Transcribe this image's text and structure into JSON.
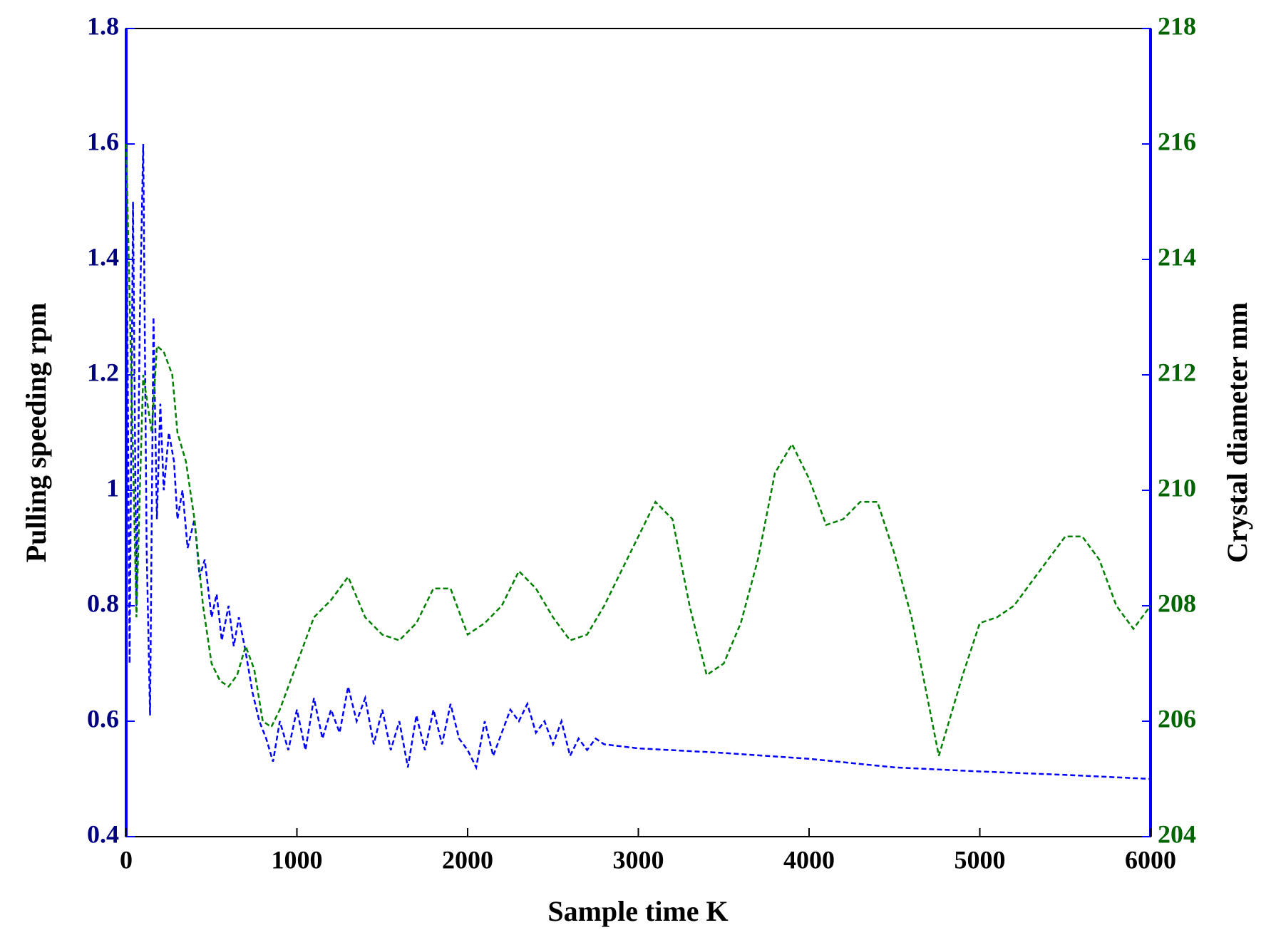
{
  "chart_data": {
    "type": "line",
    "xlabel": "Sample time K",
    "ylabel": "Pulling speeding  rpm",
    "y2label": "Crystal diameter  mm",
    "xlim": [
      0,
      6000
    ],
    "xticks": [
      0,
      1000,
      2000,
      3000,
      4000,
      5000,
      6000
    ],
    "ylim": [
      0.4,
      1.8
    ],
    "yticks": [
      0.4,
      0.6,
      0.8,
      1,
      1.2,
      1.4,
      1.6,
      1.8
    ],
    "y2lim": [
      204,
      218
    ],
    "y2ticks": [
      204,
      206,
      208,
      210,
      212,
      214,
      216,
      218
    ],
    "linestyle": "dashed",
    "series": [
      {
        "color": "#0000ff",
        "axis": "y",
        "x": [
          0,
          20,
          40,
          60,
          80,
          100,
          120,
          140,
          160,
          180,
          200,
          220,
          250,
          280,
          300,
          330,
          360,
          400,
          430,
          460,
          500,
          530,
          560,
          600,
          630,
          660,
          700,
          740,
          780,
          820,
          860,
          900,
          950,
          1000,
          1050,
          1100,
          1150,
          1200,
          1250,
          1300,
          1350,
          1400,
          1450,
          1500,
          1550,
          1600,
          1650,
          1700,
          1750,
          1800,
          1850,
          1900,
          1950,
          2000,
          2050,
          2100,
          2150,
          2200,
          2250,
          2300,
          2350,
          2400,
          2450,
          2500,
          2550,
          2600,
          2650,
          2700,
          2750,
          2800,
          3000,
          3500,
          4000,
          4500,
          5000,
          5500,
          6000
        ],
        "values": [
          1.62,
          0.7,
          1.5,
          0.8,
          1.3,
          1.6,
          0.9,
          0.61,
          1.3,
          0.95,
          1.15,
          1.0,
          1.1,
          1.05,
          0.95,
          1.0,
          0.9,
          0.95,
          0.85,
          0.88,
          0.78,
          0.82,
          0.74,
          0.8,
          0.73,
          0.78,
          0.72,
          0.65,
          0.6,
          0.57,
          0.53,
          0.6,
          0.55,
          0.62,
          0.55,
          0.64,
          0.57,
          0.62,
          0.58,
          0.66,
          0.6,
          0.64,
          0.56,
          0.62,
          0.55,
          0.6,
          0.52,
          0.61,
          0.55,
          0.62,
          0.56,
          0.63,
          0.57,
          0.55,
          0.52,
          0.6,
          0.54,
          0.58,
          0.62,
          0.6,
          0.63,
          0.58,
          0.6,
          0.56,
          0.6,
          0.54,
          0.57,
          0.55,
          0.57,
          0.56,
          0.553,
          0.545,
          0.535,
          0.52,
          0.513,
          0.507,
          0.5
        ]
      },
      {
        "color": "#008000",
        "axis": "y2",
        "x": [
          0,
          30,
          60,
          80,
          100,
          150,
          180,
          220,
          270,
          300,
          350,
          400,
          450,
          500,
          550,
          600,
          650,
          700,
          750,
          800,
          850,
          900,
          1000,
          1100,
          1200,
          1300,
          1400,
          1500,
          1600,
          1700,
          1800,
          1900,
          2000,
          2100,
          2200,
          2300,
          2400,
          2500,
          2600,
          2700,
          2800,
          2900,
          3000,
          3100,
          3200,
          3300,
          3400,
          3500,
          3600,
          3700,
          3800,
          3900,
          4000,
          4100,
          4200,
          4300,
          4400,
          4500,
          4600,
          4700,
          4760,
          4800,
          4900,
          5000,
          5100,
          5200,
          5300,
          5400,
          5500,
          5600,
          5700,
          5800,
          5900,
          6000
        ],
        "values": [
          216,
          212,
          207.8,
          210,
          212,
          211,
          212.5,
          212.4,
          212,
          211,
          210.5,
          209.5,
          208,
          207,
          206.7,
          206.6,
          206.8,
          207.3,
          206.9,
          206,
          205.9,
          206.2,
          207,
          207.8,
          208.1,
          208.5,
          207.8,
          207.5,
          207.4,
          207.7,
          208.3,
          208.3,
          207.5,
          207.7,
          208,
          208.6,
          208.3,
          207.8,
          207.4,
          207.5,
          208,
          208.6,
          209.2,
          209.8,
          209.5,
          208,
          206.8,
          207,
          207.7,
          208.8,
          210.3,
          210.8,
          210.2,
          209.4,
          209.5,
          209.8,
          209.8,
          208.9,
          207.8,
          206.3,
          205.4,
          205.8,
          206.8,
          207.7,
          207.8,
          208,
          208.4,
          208.8,
          209.2,
          209.2,
          208.8,
          208,
          207.6,
          208
        ]
      }
    ]
  }
}
